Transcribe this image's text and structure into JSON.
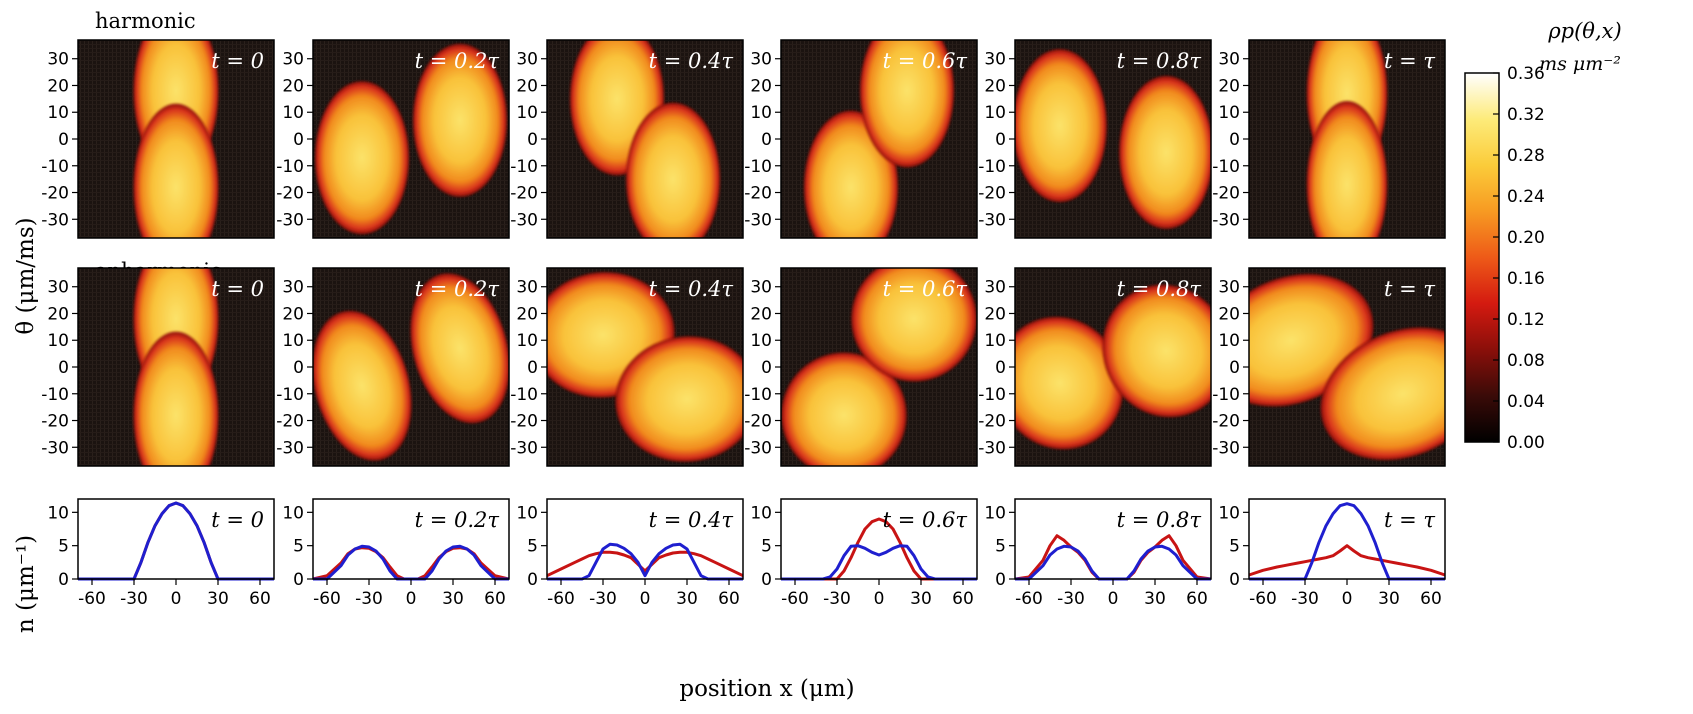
{
  "chart_data": {
    "type": "heatmap",
    "row_labels": [
      "harmonic",
      "anharmonic"
    ],
    "panel_time_labels": [
      "t = 0",
      "t = 0.2τ",
      "t = 0.4τ",
      "t = 0.6τ",
      "t = 0.8τ",
      "t = τ"
    ],
    "heatmap_ylabel": "θ (μm/ms)",
    "heatmap_yticks": [
      30,
      20,
      10,
      0,
      -10,
      -20,
      -30
    ],
    "heatmap_ylim": [
      -37,
      37
    ],
    "heatmap_xlim": [
      -70,
      70
    ],
    "colorbar": {
      "label": "ρp(θ,x)",
      "unit": "ms μm⁻²",
      "ticks": [
        "0.36",
        "0.32",
        "0.28",
        "0.24",
        "0.20",
        "0.16",
        "0.12",
        "0.08",
        "0.04",
        "0.00"
      ],
      "range": [
        0,
        0.36
      ],
      "colors": [
        "#000000",
        "#3a0b08",
        "#8a0f0a",
        "#d41a10",
        "#ee5a18",
        "#f79a22",
        "#fbcc3a",
        "#fdeb7a",
        "#ffffff"
      ]
    },
    "blobs": {
      "harmonic": [
        [
          {
            "x": 0,
            "y": 18,
            "rx": 19,
            "ry": 12
          },
          {
            "x": 0,
            "y": -18,
            "rx": 19,
            "ry": 12
          }
        ],
        [
          {
            "x": -35,
            "y": -7,
            "rx": 21,
            "ry": 11
          },
          {
            "x": 35,
            "y": 7,
            "rx": 21,
            "ry": 11
          }
        ],
        [
          {
            "x": -20,
            "y": 15,
            "rx": 21,
            "ry": 11
          },
          {
            "x": 20,
            "y": -15,
            "rx": 21,
            "ry": 11
          }
        ],
        [
          {
            "x": -20,
            "y": -18,
            "rx": 21,
            "ry": 11
          },
          {
            "x": 20,
            "y": 18,
            "rx": 21,
            "ry": 11
          }
        ],
        [
          {
            "x": -38,
            "y": 5,
            "rx": 21,
            "ry": 11
          },
          {
            "x": 38,
            "y": -5,
            "rx": 21,
            "ry": 11
          }
        ],
        [
          {
            "x": 0,
            "y": 17,
            "rx": 18,
            "ry": 12
          },
          {
            "x": 0,
            "y": -17,
            "rx": 18,
            "ry": 12
          }
        ]
      ],
      "anharmonic": [
        [
          {
            "x": 0,
            "y": 18,
            "rx": 19,
            "ry": 12
          },
          {
            "x": 0,
            "y": -18,
            "rx": 19,
            "ry": 12
          }
        ],
        [
          {
            "x": -35,
            "y": -7,
            "rx": 21,
            "ry": 11,
            "r": -15
          },
          {
            "x": 35,
            "y": 7,
            "rx": 21,
            "ry": 11,
            "r": -15
          }
        ],
        [
          {
            "x": -30,
            "y": 12,
            "rx": 32,
            "ry": 9,
            "r": -6
          },
          {
            "x": 30,
            "y": -12,
            "rx": 32,
            "ry": 9,
            "r": -6
          }
        ],
        [
          {
            "x": -25,
            "y": -18,
            "rx": 28,
            "ry": 9,
            "r": 35
          },
          {
            "x": 25,
            "y": 18,
            "rx": 28,
            "ry": 9,
            "r": 35
          }
        ],
        [
          {
            "x": -38,
            "y": -6,
            "rx": 30,
            "ry": 9,
            "r": 62
          },
          {
            "x": 38,
            "y": 6,
            "rx": 30,
            "ry": 9,
            "r": 62
          }
        ],
        [
          {
            "x": -40,
            "y": 10,
            "rx": 38,
            "ry": 9,
            "r": -22
          },
          {
            "x": 40,
            "y": -10,
            "rx": 38,
            "ry": 9,
            "r": -22
          }
        ]
      ]
    },
    "density": {
      "ylabel": "n (μm⁻¹)",
      "xlabel": "position x (μm)",
      "xticks": [
        -60,
        -30,
        0,
        30,
        60
      ],
      "yticks": [
        0,
        5,
        10
      ],
      "xlim": [
        -70,
        70
      ],
      "ylim": [
        0,
        12
      ],
      "series_colors": {
        "blue": "#1f1fcf",
        "red": "#c81414"
      },
      "x": [
        -70,
        -60,
        -50,
        -45,
        -40,
        -35,
        -30,
        -25,
        -20,
        -15,
        -10,
        -5,
        0,
        5,
        10,
        15,
        20,
        25,
        30,
        35,
        40,
        45,
        50,
        60,
        70
      ],
      "panels": [
        {
          "blue": [
            0,
            0,
            0,
            0,
            0,
            0,
            0,
            2.5,
            5.5,
            8,
            9.8,
            11,
            11.4,
            11,
            9.8,
            8,
            5.5,
            2.5,
            0,
            0,
            0,
            0,
            0,
            0,
            0
          ],
          "red": [
            0,
            0,
            0,
            0,
            0,
            0,
            0,
            2.5,
            5.5,
            8,
            9.8,
            11,
            11.4,
            11,
            9.8,
            8,
            5.5,
            2.5,
            0,
            0,
            0,
            0,
            0,
            0,
            0
          ]
        },
        {
          "blue": [
            0,
            0,
            2,
            3.6,
            4.5,
            4.9,
            4.8,
            4.2,
            3,
            1.2,
            0,
            0,
            0,
            0,
            0,
            1.2,
            3,
            4.2,
            4.8,
            4.9,
            4.5,
            3.6,
            2,
            0,
            0
          ],
          "red": [
            0,
            0.5,
            2.4,
            3.8,
            4.5,
            4.7,
            4.6,
            4.1,
            3.2,
            1.8,
            0.5,
            0,
            0,
            0,
            0.5,
            1.8,
            3.2,
            4.1,
            4.6,
            4.7,
            4.5,
            3.8,
            2.4,
            0.5,
            0
          ]
        },
        {
          "blue": [
            0,
            0,
            0,
            0,
            0.5,
            2.5,
            4.5,
            5.2,
            5.1,
            4.6,
            3.8,
            2.5,
            0.5,
            2.5,
            3.8,
            4.6,
            5.1,
            5.2,
            4.5,
            2.5,
            0.5,
            0,
            0,
            0,
            0
          ],
          "red": [
            0.5,
            1.5,
            2.5,
            3,
            3.5,
            3.8,
            4,
            4,
            3.9,
            3.6,
            3.2,
            2.2,
            1.2,
            2.2,
            3.2,
            3.6,
            3.9,
            4,
            4,
            3.8,
            3.5,
            3,
            2.5,
            1.5,
            0.5
          ]
        },
        {
          "blue": [
            0,
            0,
            0,
            0,
            0,
            0.3,
            1.5,
            3.5,
            4.9,
            5,
            4.6,
            4,
            3.6,
            4,
            4.6,
            5,
            4.9,
            3.5,
            1.5,
            0.3,
            0,
            0,
            0,
            0,
            0
          ],
          "red": [
            0,
            0,
            0,
            0,
            0,
            0,
            0,
            1.2,
            3.2,
            5.5,
            7.5,
            8.6,
            9,
            8.6,
            7.5,
            5.5,
            3.2,
            1.2,
            0,
            0,
            0,
            0,
            0,
            0,
            0
          ]
        },
        {
          "blue": [
            0,
            0,
            2,
            3.6,
            4.5,
            4.9,
            4.8,
            4.2,
            3,
            1.2,
            0,
            0,
            0,
            0,
            0,
            1.2,
            3,
            4.2,
            4.8,
            4.9,
            4.5,
            3.6,
            2,
            0,
            0
          ],
          "red": [
            0,
            0.3,
            2.8,
            5,
            6.5,
            5.8,
            4.8,
            4,
            2.8,
            1,
            0,
            0,
            0,
            0,
            0,
            1,
            2.8,
            4,
            4.8,
            5.8,
            6.5,
            5,
            2.8,
            0.3,
            0
          ]
        },
        {
          "blue": [
            0,
            0,
            0,
            0,
            0,
            0,
            0,
            2.5,
            5.5,
            8,
            9.8,
            11,
            11.3,
            11,
            9.8,
            8,
            5.5,
            2.5,
            0,
            0,
            0,
            0,
            0,
            0,
            0
          ],
          "red": [
            0.6,
            1.3,
            1.8,
            2,
            2.2,
            2.4,
            2.6,
            2.8,
            3,
            3.2,
            3.5,
            4.2,
            5,
            4.2,
            3.5,
            3.2,
            3,
            2.8,
            2.6,
            2.4,
            2.2,
            2,
            1.8,
            1.3,
            0.6
          ]
        }
      ]
    }
  }
}
